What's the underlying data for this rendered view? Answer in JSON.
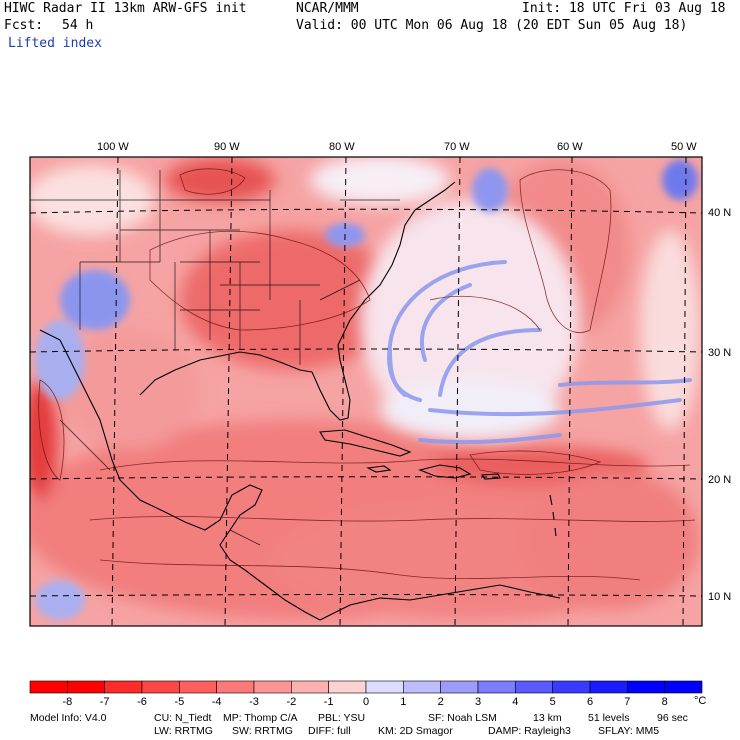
{
  "header": {
    "title": "HIWC Radar II 13km ARW-GFS init",
    "org": "NCAR/MMM",
    "init": "Init: 18 UTC Fri 03 Aug 18",
    "fcst_label": "Fcst:",
    "fcst_value": "54 h",
    "valid": "Valid: 00 UTC Mon 06 Aug 18 (20 EDT Sun 05 Aug 18)",
    "field": "Lifted index"
  },
  "longitude_labels": [
    "100 W",
    "90 W",
    "80 W",
    "70 W",
    "60 W",
    "50 W"
  ],
  "latitude_labels": [
    "40 N",
    "30 N",
    "20 N",
    "10 N"
  ],
  "colorbar": {
    "unit": "°C",
    "ticks": [
      "-8",
      "-7",
      "-6",
      "-5",
      "-4",
      "-3",
      "-2",
      "-1",
      "0",
      "1",
      "2",
      "3",
      "4",
      "5",
      "6",
      "7",
      "8"
    ],
    "colors": [
      "#ff0000",
      "#ff2a2a",
      "#ff4646",
      "#ff5e5e",
      "#ff7878",
      "#ff9494",
      "#ffb0b0",
      "#ffd2d2",
      "#ffffff",
      "#dcdcff",
      "#bcbcff",
      "#9c9cff",
      "#7c7cff",
      "#5a5aff",
      "#3a3aff",
      "#1a1aff",
      "#0000ff"
    ]
  },
  "footer": {
    "line1": [
      "Model Info: V4.0",
      "CU: N_Tiedt",
      "MP: Thomp C/A",
      "PBL: YSU",
      "SF: Noah LSM",
      "13 km",
      "51 levels",
      "96 sec"
    ],
    "line2": [
      "LW: RRTMG",
      "SW: RRTMG",
      "DIFF: full",
      "KM: 2D Smagor",
      "DAMP: Rayleigh3",
      "SFLAY: MM5"
    ]
  },
  "colors": {
    "positive_li": "#ee5a5a",
    "negative_li": "#5a6cf0",
    "neutral": "#ffffff",
    "label_blue": "#1a3cb5"
  }
}
